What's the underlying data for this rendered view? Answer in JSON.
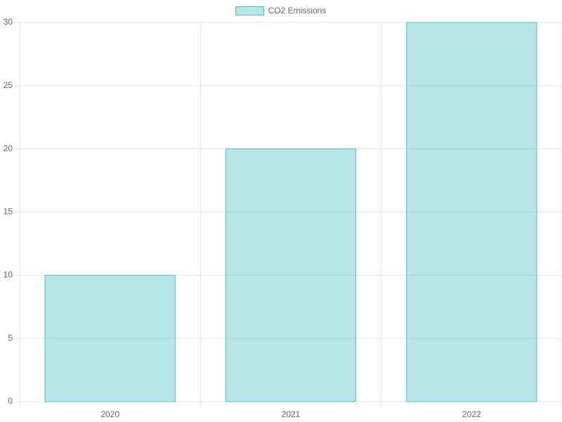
{
  "chart_data": {
    "type": "bar",
    "categories": [
      "2020",
      "2021",
      "2022"
    ],
    "series": [
      {
        "name": "CO2 Emissions",
        "color": "rgba(75, 192, 192, 0.4)",
        "border_color": "rgb(75, 192, 192)",
        "values": [
          10,
          20,
          30
        ]
      }
    ],
    "ylim": [
      0,
      30
    ],
    "yticks": [
      0,
      5,
      10,
      15,
      20,
      25,
      30
    ],
    "grid": true,
    "legend": "top"
  }
}
